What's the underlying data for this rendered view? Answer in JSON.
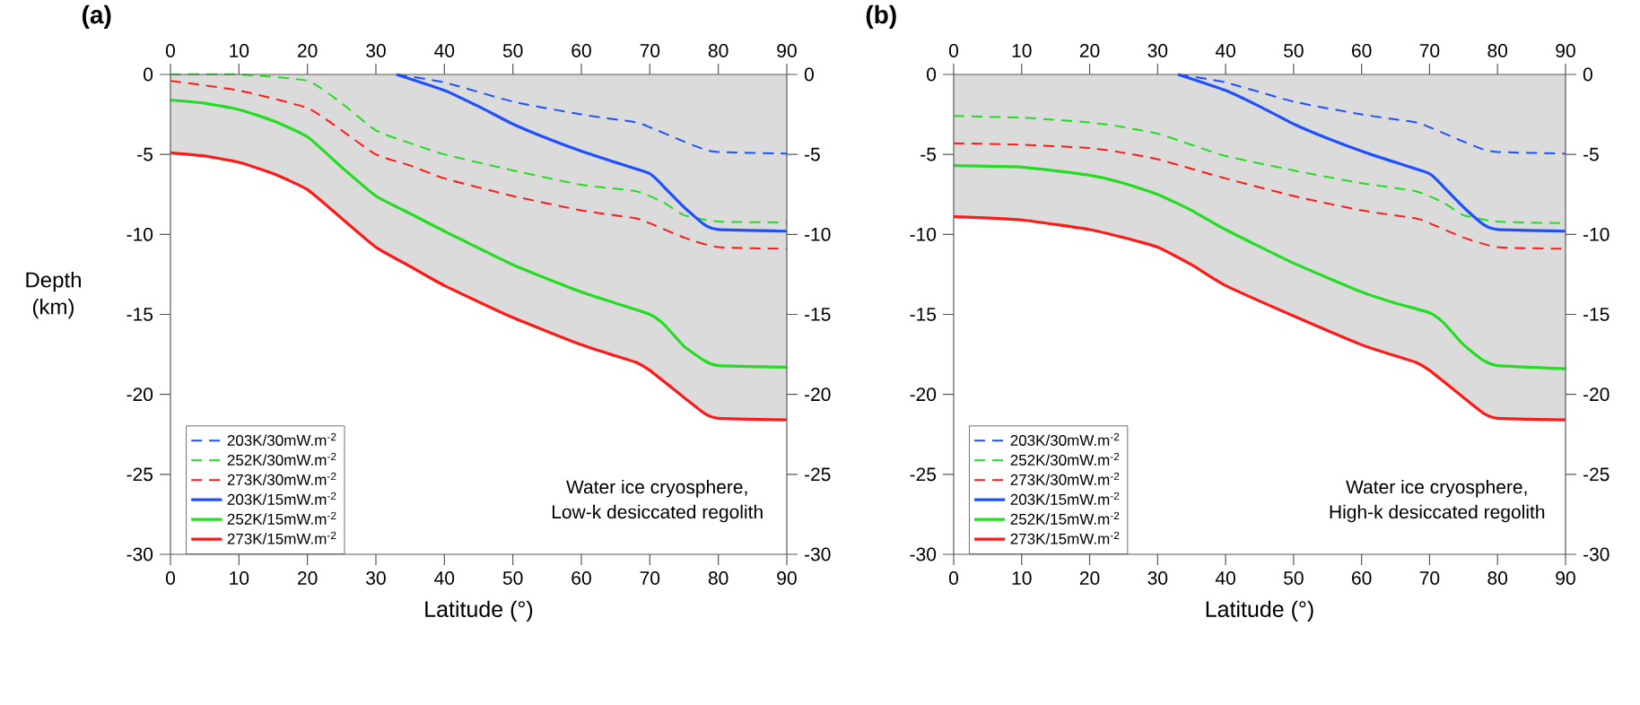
{
  "chart_data": [
    {
      "type": "line",
      "title": "(a)",
      "xlabel": "Latitude (°)",
      "ylabel": "Depth (km)",
      "annotations": [
        "Water ice cryosphere,",
        "Low-k desiccated regolith"
      ],
      "xlim": [
        0,
        90
      ],
      "ylim": [
        -30,
        0
      ],
      "xticks": [
        0,
        10,
        20,
        30,
        40,
        50,
        60,
        70,
        80,
        90
      ],
      "yticks": [
        -30,
        -25,
        -20,
        -15,
        -10,
        -5,
        0
      ],
      "x2lim": [
        0,
        90
      ],
      "x2ticks": [
        0,
        10,
        20,
        30,
        40,
        50,
        60,
        70,
        80,
        90
      ],
      "y2lim": [
        -30,
        0
      ],
      "y2ticks": [
        -30,
        -25,
        -20,
        -15,
        -10,
        -5,
        0
      ],
      "legend": "bottom left",
      "series": [
        {
          "name": "203K/30mW.m$^{-2}$",
          "color": "#1e50ff",
          "line_style": "dashed",
          "x": [
            33,
            40,
            50,
            60,
            68,
            70,
            75,
            78,
            80,
            90
          ],
          "values": [
            0,
            -0.5,
            -1.7,
            -2.5,
            -3.0,
            -3.3,
            -4.2,
            -4.7,
            -4.85,
            -4.95
          ]
        },
        {
          "name": "252K/30mW.m$^{-2}$",
          "color": "#22dd22",
          "line_style": "dashed",
          "x": [
            0,
            10,
            20,
            25,
            30,
            35,
            40,
            50,
            60,
            68,
            72,
            75,
            80,
            90
          ],
          "values": [
            0,
            0,
            -0.4,
            -1.8,
            -3.5,
            -4.3,
            -5.0,
            -6.0,
            -6.9,
            -7.3,
            -8.0,
            -8.8,
            -9.2,
            -9.25
          ]
        },
        {
          "name": "273K/30mW.m$^{-2}$",
          "color": "#ff1a1a",
          "line_style": "dashed",
          "x": [
            0,
            10,
            20,
            25,
            30,
            35,
            40,
            50,
            60,
            68,
            70,
            75,
            80,
            90
          ],
          "values": [
            -0.4,
            -1.0,
            -2.1,
            -3.5,
            -5.0,
            -5.7,
            -6.5,
            -7.6,
            -8.5,
            -9.0,
            -9.3,
            -10.2,
            -10.8,
            -10.9
          ]
        },
        {
          "name": "203K/15mW.m$^{-2}$",
          "color": "#1e50ff",
          "line_style": "solid",
          "x": [
            33,
            40,
            45,
            50,
            55,
            60,
            65,
            70,
            72,
            75,
            78,
            80,
            90
          ],
          "values": [
            0,
            -1.0,
            -2.0,
            -3.1,
            -4.0,
            -4.8,
            -5.5,
            -6.2,
            -7.0,
            -8.3,
            -9.4,
            -9.7,
            -9.8
          ]
        },
        {
          "name": "252K/15mW.m$^{-2}$",
          "color": "#22dd22",
          "line_style": "solid",
          "x": [
            0,
            5,
            10,
            15,
            20,
            25,
            30,
            35,
            40,
            50,
            60,
            65,
            70,
            72,
            75,
            78,
            80,
            90
          ],
          "values": [
            -1.6,
            -1.8,
            -2.2,
            -2.9,
            -3.9,
            -5.8,
            -7.6,
            -8.7,
            -9.8,
            -11.9,
            -13.6,
            -14.3,
            -15.0,
            -15.6,
            -17.0,
            -17.9,
            -18.2,
            -18.3
          ]
        },
        {
          "name": "273K/15mW.m$^{-2}$",
          "type": "area",
          "color": "#ff1a1a",
          "line_style": "solid",
          "x": [
            0,
            5,
            10,
            15,
            20,
            25,
            30,
            35,
            40,
            50,
            60,
            65,
            68,
            70,
            75,
            78,
            80,
            90
          ],
          "values": [
            -4.9,
            -5.1,
            -5.5,
            -6.2,
            -7.2,
            -9.0,
            -10.8,
            -12.0,
            -13.2,
            -15.2,
            -16.9,
            -17.6,
            -18.0,
            -18.5,
            -20.2,
            -21.2,
            -21.5,
            -21.6
          ]
        }
      ]
    },
    {
      "type": "line",
      "title": "(b)",
      "xlabel": "Latitude (°)",
      "annotations": [
        "Water ice cryosphere,",
        "High-k desiccated regolith"
      ],
      "xlim": [
        0,
        90
      ],
      "ylim": [
        -30,
        0
      ],
      "xticks": [
        0,
        10,
        20,
        30,
        40,
        50,
        60,
        70,
        80,
        90
      ],
      "yticks": [
        -30,
        -25,
        -20,
        -15,
        -10,
        -5,
        0
      ],
      "x2lim": [
        0,
        90
      ],
      "x2ticks": [
        0,
        10,
        20,
        30,
        40,
        50,
        60,
        70,
        80,
        90
      ],
      "y2lim": [
        -30,
        0
      ],
      "y2ticks": [
        -30,
        -25,
        -20,
        -15,
        -10,
        -5,
        0
      ],
      "legend": "bottom left",
      "series": [
        {
          "name": "203K/30mW.m$^{-2}$",
          "color": "#1e50ff",
          "line_style": "dashed",
          "x": [
            33,
            40,
            50,
            60,
            68,
            70,
            75,
            78,
            80,
            90
          ],
          "values": [
            0,
            -0.5,
            -1.7,
            -2.5,
            -3.0,
            -3.3,
            -4.2,
            -4.7,
            -4.85,
            -4.95
          ]
        },
        {
          "name": "252K/30mW.m$^{-2}$",
          "color": "#22dd22",
          "line_style": "dashed",
          "x": [
            0,
            10,
            20,
            25,
            30,
            35,
            40,
            50,
            60,
            68,
            72,
            75,
            80,
            90
          ],
          "values": [
            -2.6,
            -2.7,
            -3.0,
            -3.3,
            -3.7,
            -4.4,
            -5.1,
            -6.0,
            -6.8,
            -7.3,
            -8.0,
            -8.8,
            -9.2,
            -9.3
          ]
        },
        {
          "name": "273K/30mW.m$^{-2}$",
          "color": "#ff1a1a",
          "line_style": "dashed",
          "x": [
            0,
            10,
            20,
            25,
            30,
            35,
            40,
            50,
            60,
            68,
            70,
            75,
            80,
            90
          ],
          "values": [
            -4.3,
            -4.4,
            -4.6,
            -4.9,
            -5.3,
            -5.9,
            -6.5,
            -7.6,
            -8.5,
            -9.0,
            -9.3,
            -10.2,
            -10.8,
            -10.9
          ]
        },
        {
          "name": "203K/15mW.m$^{-2}$",
          "color": "#1e50ff",
          "line_style": "solid",
          "x": [
            33,
            40,
            45,
            50,
            55,
            60,
            65,
            70,
            72,
            75,
            78,
            80,
            90
          ],
          "values": [
            0,
            -1.0,
            -2.0,
            -3.1,
            -4.0,
            -4.8,
            -5.5,
            -6.2,
            -7.0,
            -8.3,
            -9.4,
            -9.7,
            -9.8
          ]
        },
        {
          "name": "252K/15mW.m$^{-2}$",
          "color": "#22dd22",
          "line_style": "solid",
          "x": [
            0,
            10,
            20,
            25,
            30,
            35,
            40,
            50,
            60,
            65,
            70,
            72,
            75,
            78,
            80,
            90
          ],
          "values": [
            -5.7,
            -5.8,
            -6.3,
            -6.8,
            -7.5,
            -8.5,
            -9.7,
            -11.8,
            -13.6,
            -14.3,
            -14.9,
            -15.5,
            -16.9,
            -17.9,
            -18.2,
            -18.4
          ]
        },
        {
          "name": "273K/15mW.m$^{-2}$",
          "type": "area",
          "color": "#ff1a1a",
          "line_style": "solid",
          "x": [
            0,
            10,
            20,
            25,
            30,
            35,
            40,
            50,
            60,
            65,
            68,
            70,
            75,
            78,
            80,
            90
          ],
          "values": [
            -8.9,
            -9.1,
            -9.7,
            -10.2,
            -10.8,
            -11.9,
            -13.2,
            -15.1,
            -16.9,
            -17.6,
            -18.0,
            -18.5,
            -20.2,
            -21.2,
            -21.5,
            -21.6
          ]
        }
      ]
    }
  ]
}
